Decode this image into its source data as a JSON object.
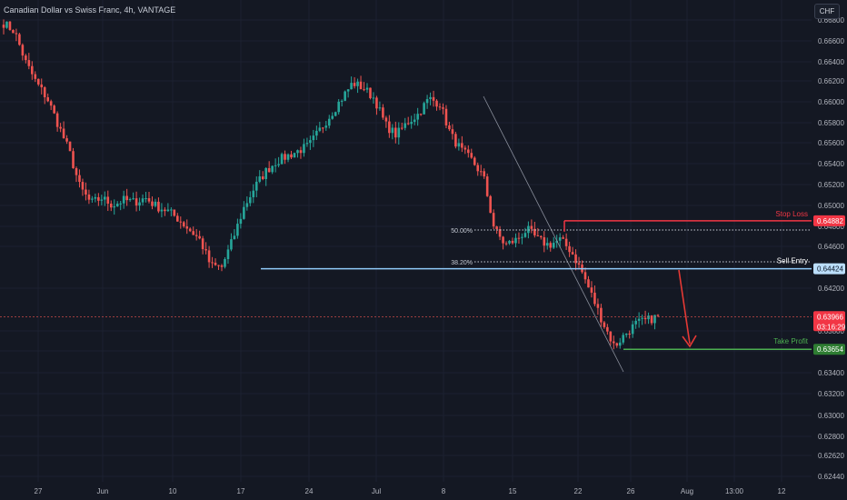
{
  "header": {
    "title": "Canadian Dollar vs Swiss Franc, 4h, VANTAGE",
    "currency_button": "CHF"
  },
  "colors": {
    "background": "#141823",
    "bull": "#26a69a",
    "bear": "#ef5350",
    "stop_loss": "#f23645",
    "sell_entry": "#90caf9",
    "take_profit": "#4caf50",
    "arrow": "#e53935"
  },
  "chart_data": {
    "type": "candlestick",
    "y_axis_ticks": [
      "0.66600",
      "0.66400",
      "0.66200",
      "0.66000",
      "0.65800",
      "0.65600",
      "0.65400",
      "0.65200",
      "0.65000",
      "0.64800",
      "0.64600",
      "0.64200",
      "0.63800",
      "0.63600",
      "0.63400",
      "0.63200",
      "0.63000",
      "0.62800",
      "0.62620",
      "0.62440"
    ],
    "ylim": [
      0.6244,
      0.668
    ],
    "x_axis_ticks": [
      "27",
      "Jun",
      "10",
      "17",
      "24",
      "Jul",
      "8",
      "15",
      "22",
      "26",
      "Aug",
      "13:00",
      "12"
    ],
    "price_path": [
      [
        0.6677,
        "Jul"
      ],
      [
        0.6669,
        0
      ],
      [
        0.664,
        0
      ],
      [
        0.662,
        0
      ],
      [
        0.6605,
        0
      ],
      [
        0.658,
        0
      ],
      [
        0.6555,
        0
      ],
      [
        0.652,
        0
      ],
      [
        0.6505,
        0
      ],
      [
        0.651,
        0
      ],
      [
        0.6503,
        0
      ],
      [
        0.6508,
        0
      ],
      [
        0.6506,
        0
      ],
      [
        0.651,
        0
      ],
      [
        0.6502,
        0
      ],
      [
        0.6498,
        0
      ],
      [
        0.649,
        0
      ],
      [
        0.648,
        0
      ],
      [
        0.647,
        0
      ],
      [
        0.6445,
        0
      ],
      [
        0.6444,
        0
      ],
      [
        0.647,
        0
      ],
      [
        0.65,
        0
      ],
      [
        0.652,
        0
      ],
      [
        0.6535,
        0
      ],
      [
        0.6545,
        0
      ],
      [
        0.655,
        0
      ],
      [
        0.6555,
        0
      ],
      [
        0.656,
        0
      ],
      [
        0.6575,
        0
      ],
      [
        0.659,
        0
      ],
      [
        0.6605,
        0
      ],
      [
        0.662,
        0
      ],
      [
        0.6615,
        0
      ],
      [
        0.6605,
        0
      ],
      [
        0.658,
        0
      ],
      [
        0.657,
        0
      ],
      [
        0.6582,
        0
      ],
      [
        0.659,
        0
      ],
      [
        0.6605,
        0
      ],
      [
        0.66,
        0
      ],
      [
        0.657,
        0
      ],
      [
        0.6555,
        0
      ],
      [
        0.6545,
        0
      ],
      [
        0.653,
        0
      ],
      [
        0.648,
        0
      ],
      [
        0.6465,
        0
      ],
      [
        0.647,
        0
      ],
      [
        0.648,
        0
      ],
      [
        0.647,
        0
      ],
      [
        0.6465,
        0
      ],
      [
        0.647,
        0
      ],
      [
        0.646,
        0
      ],
      [
        0.644,
        0
      ],
      [
        0.6415,
        0
      ],
      [
        0.639,
        0
      ],
      [
        0.6368,
        0
      ],
      [
        0.638,
        0
      ],
      [
        0.639,
        0
      ],
      [
        0.6393,
        0
      ],
      [
        0.6397,
        0
      ]
    ],
    "levels": [
      {
        "label": "Stop Loss",
        "price": "0.64882"
      },
      {
        "label": "Sell Entry",
        "price": "0.64424"
      },
      {
        "label": "Take Profit",
        "price": "0.63654"
      }
    ],
    "current_price": {
      "price": "0.63966",
      "countdown": "03:16:29"
    },
    "fib_levels": [
      {
        "label": "50.00%"
      },
      {
        "label": "38.20%"
      }
    ]
  }
}
